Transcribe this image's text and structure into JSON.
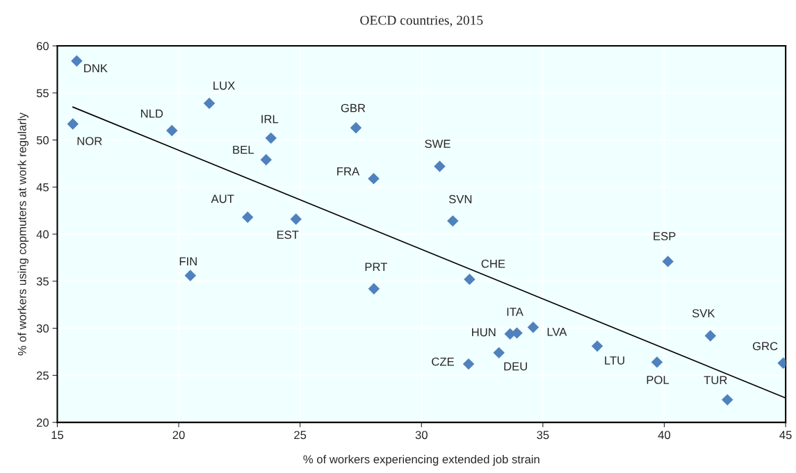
{
  "chart_data": {
    "type": "scatter",
    "title": "OECD countries, 2015",
    "xlabel": "% of workers experiencing extended job strain",
    "ylabel": "% of workers using copmuters at work regularly",
    "xlim": [
      15,
      45
    ],
    "xticks": [
      15,
      20,
      25,
      30,
      35,
      40,
      45
    ],
    "ylim": [
      20,
      60
    ],
    "yticks": [
      20,
      25,
      30,
      35,
      40,
      45,
      50,
      55,
      60
    ],
    "grid": true,
    "marker": "diamond",
    "series": [
      {
        "color": "#4f81bd",
        "x": [
          15.8,
          15.64,
          19.72,
          21.26,
          23.8,
          23.6,
          22.84,
          24.83,
          20.48,
          27.3,
          30.75,
          28.03,
          31.29,
          28.04,
          31.98,
          33.65,
          33.93,
          34.6,
          33.19,
          31.94,
          40.15,
          41.9,
          37.24,
          39.7,
          44.9,
          42.6
        ],
        "values": [
          58.4,
          51.7,
          51.0,
          53.9,
          50.2,
          47.9,
          41.8,
          41.6,
          35.6,
          51.3,
          47.2,
          45.9,
          41.4,
          34.2,
          35.2,
          29.4,
          29.5,
          30.1,
          27.4,
          26.2,
          37.1,
          29.2,
          28.1,
          26.4,
          26.3,
          22.4
        ]
      },
      {
        "type": "line",
        "color": "#000000",
        "marker": "none",
        "x": [
          15.64,
          45
        ],
        "values": [
          53.5,
          22.6
        ]
      }
    ],
    "annotations": [
      {
        "text": "DNK",
        "x": 15.8,
        "y": 58.4
      },
      {
        "text": "NOR",
        "x": 15.64,
        "y": 51.7
      },
      {
        "text": "NLD",
        "x": 19.72,
        "y": 51.0
      },
      {
        "text": "LUX",
        "x": 21.26,
        "y": 53.9
      },
      {
        "text": "IRL",
        "x": 23.8,
        "y": 50.2
      },
      {
        "text": "BEL",
        "x": 23.6,
        "y": 47.9
      },
      {
        "text": "AUT",
        "x": 22.84,
        "y": 41.8
      },
      {
        "text": "EST",
        "x": 24.83,
        "y": 41.6
      },
      {
        "text": "FIN",
        "x": 20.48,
        "y": 35.6
      },
      {
        "text": "GBR",
        "x": 27.3,
        "y": 51.3
      },
      {
        "text": "SWE",
        "x": 30.75,
        "y": 47.2
      },
      {
        "text": "FRA",
        "x": 28.03,
        "y": 45.9
      },
      {
        "text": "SVN",
        "x": 31.29,
        "y": 41.4
      },
      {
        "text": "PRT",
        "x": 28.04,
        "y": 34.2
      },
      {
        "text": "CHE",
        "x": 31.98,
        "y": 35.2
      },
      {
        "text": "HUN",
        "x": 33.65,
        "y": 29.4
      },
      {
        "text": "ITA",
        "x": 33.93,
        "y": 29.5
      },
      {
        "text": "LVA",
        "x": 34.6,
        "y": 30.1
      },
      {
        "text": "DEU",
        "x": 33.19,
        "y": 27.4
      },
      {
        "text": "CZE",
        "x": 31.94,
        "y": 26.2
      },
      {
        "text": "ESP",
        "x": 40.15,
        "y": 37.1
      },
      {
        "text": "SVK",
        "x": 41.9,
        "y": 29.2
      },
      {
        "text": "LTU",
        "x": 37.24,
        "y": 28.1
      },
      {
        "text": "POL",
        "x": 39.7,
        "y": 26.4
      },
      {
        "text": "GRC",
        "x": 44.9,
        "y": 26.3
      },
      {
        "text": "TUR",
        "x": 42.6,
        "y": 22.4
      }
    ]
  }
}
